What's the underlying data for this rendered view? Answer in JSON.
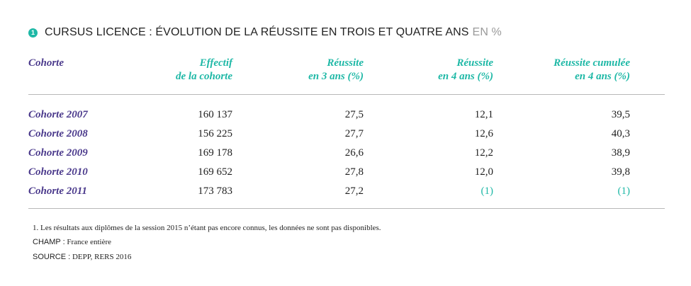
{
  "title": {
    "number": "1",
    "text": "CURSUS LICENCE : ÉVOLUTION DE LA RÉUSSITE EN TROIS ET QUATRE ANS",
    "unit": "EN %"
  },
  "colors": {
    "accent": "#1eb8a6",
    "label_purple": "#4b3a8c",
    "rule": "#b8b8b8"
  },
  "table": {
    "columns": [
      {
        "lines": [
          "Cohorte"
        ]
      },
      {
        "lines": [
          "Effectif",
          "de la cohorte"
        ]
      },
      {
        "lines": [
          "Réussite",
          "en 3 ans (%)"
        ]
      },
      {
        "lines": [
          "Réussite",
          "en 4 ans (%)"
        ]
      },
      {
        "lines": [
          "Réussite cumulée",
          "en 4 ans (%)"
        ]
      }
    ],
    "rows": [
      {
        "cohorte": "Cohorte 2007",
        "effectif": "160 137",
        "r3": "27,5",
        "r4": "12,1",
        "cumul": "39,5"
      },
      {
        "cohorte": "Cohorte 2008",
        "effectif": "156 225",
        "r3": "27,7",
        "r4": "12,6",
        "cumul": "40,3"
      },
      {
        "cohorte": "Cohorte 2009",
        "effectif": "169 178",
        "r3": "26,6",
        "r4": "12,2",
        "cumul": "38,9"
      },
      {
        "cohorte": "Cohorte 2010",
        "effectif": "169 652",
        "r3": "27,8",
        "r4": "12,0",
        "cumul": "39,8"
      },
      {
        "cohorte": "Cohorte 2011",
        "effectif": "173 783",
        "r3": "27,2",
        "r4": "(1)",
        "cumul": "(1)"
      }
    ]
  },
  "footnotes": {
    "note1": "1. Les résultats aux diplômes de la session 2015 n’étant pas encore connus, les données ne sont pas disponibles.",
    "champ_label": "CHAMP :",
    "champ_text": "France entière",
    "source_label": "SOURCE :",
    "source_text": "DEPP, RERS 2016"
  }
}
